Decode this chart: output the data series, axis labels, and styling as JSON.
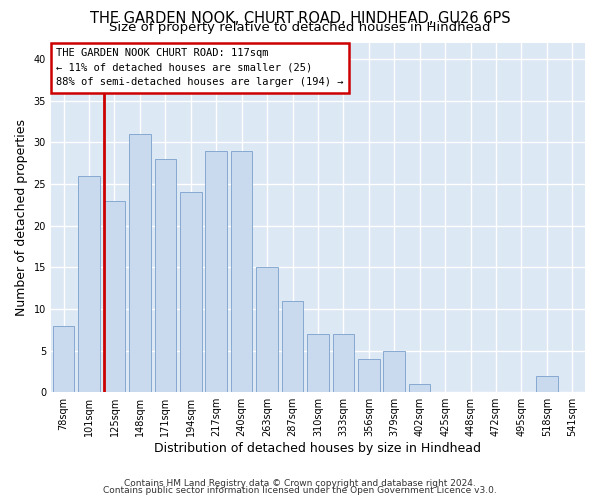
{
  "title_line1": "THE GARDEN NOOK, CHURT ROAD, HINDHEAD, GU26 6PS",
  "title_line2": "Size of property relative to detached houses in Hindhead",
  "xlabel": "Distribution of detached houses by size in Hindhead",
  "ylabel": "Number of detached properties",
  "categories": [
    "78sqm",
    "101sqm",
    "125sqm",
    "148sqm",
    "171sqm",
    "194sqm",
    "217sqm",
    "240sqm",
    "263sqm",
    "287sqm",
    "310sqm",
    "333sqm",
    "356sqm",
    "379sqm",
    "402sqm",
    "425sqm",
    "448sqm",
    "472sqm",
    "495sqm",
    "518sqm",
    "541sqm"
  ],
  "values": [
    8,
    26,
    23,
    31,
    28,
    24,
    29,
    29,
    15,
    11,
    7,
    7,
    4,
    5,
    1,
    0,
    0,
    0,
    0,
    2,
    0
  ],
  "bar_color_normal": "#c9d9ee",
  "bar_edge_color": "#7aA0cc",
  "highlight_index": 2,
  "vline_color": "#cc0000",
  "annotation_text": "THE GARDEN NOOK CHURT ROAD: 117sqm\n← 11% of detached houses are smaller (25)\n88% of semi-detached houses are larger (194) →",
  "annotation_box_color": "#ffffff",
  "annotation_box_edge": "#cc0000",
  "footnote1": "Contains HM Land Registry data © Crown copyright and database right 2024.",
  "footnote2": "Contains public sector information licensed under the Open Government Licence v3.0.",
  "ylim": [
    0,
    42
  ],
  "yticks": [
    0,
    5,
    10,
    15,
    20,
    25,
    30,
    35,
    40
  ],
  "bg_color": "#ffffff",
  "plot_bg_color": "#dde8f5",
  "grid_color": "#ffffff",
  "title_fontsize": 10.5,
  "subtitle_fontsize": 9.5,
  "ylabel_fontsize": 9,
  "xlabel_fontsize": 9,
  "tick_fontsize": 7,
  "annot_fontsize": 7.5,
  "footnote_fontsize": 6.5
}
